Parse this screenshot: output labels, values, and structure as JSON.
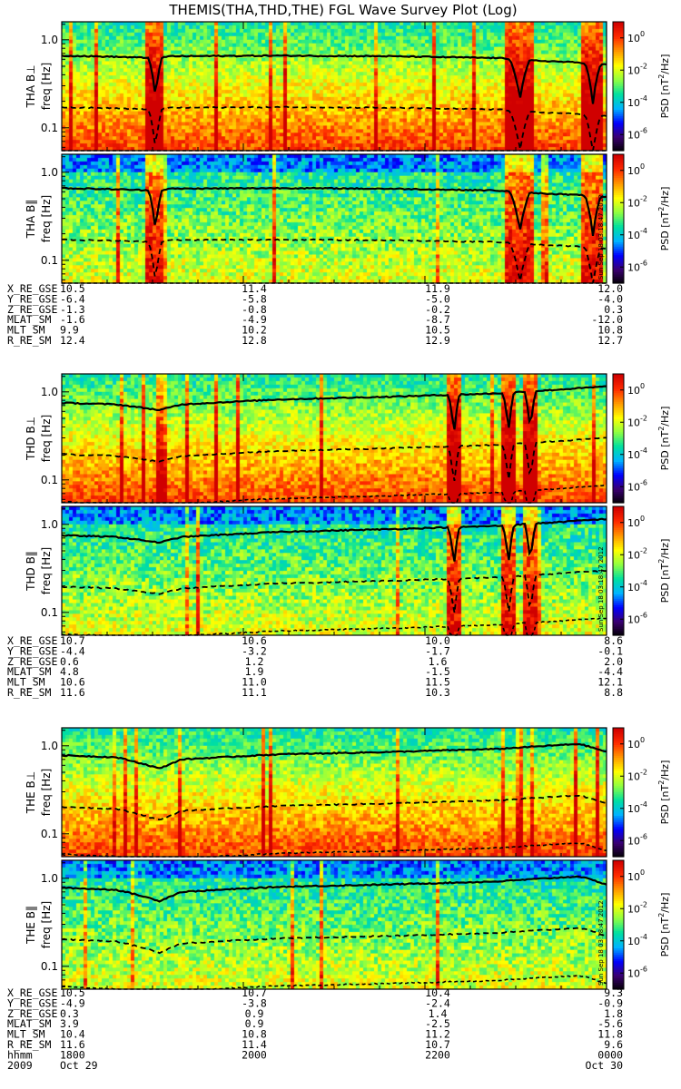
{
  "title": "THEMIS(THA,THD,THE) FGL Wave Survey Plot (Log)",
  "chart_data": {
    "type": "heatmap",
    "title": "THEMIS(THA,THD,THE) FGL Wave Survey Plot (Log)",
    "ylabel": "freq [Hz]",
    "yscale": "log",
    "ylim": [
      0.055,
      1.6
    ],
    "ytick_labels": [
      "1.0",
      "0.1"
    ],
    "yticks": [
      1.0,
      0.1
    ],
    "colorbar": {
      "label_prefix": "PSD [nT",
      "label_sup": "2",
      "label_suffix": "/Hz]",
      "scale": "log",
      "range": [
        1e-07,
        10
      ],
      "ticks": [
        {
          "base": "10",
          "exp": "0"
        },
        {
          "base": "10",
          "exp": "-2"
        },
        {
          "base": "10",
          "exp": "-4"
        },
        {
          "base": "10",
          "exp": "-6"
        }
      ],
      "colors": [
        "#000000",
        "#3b0070",
        "#0000ff",
        "#00b4ff",
        "#00e0a0",
        "#90ff40",
        "#ffff00",
        "#ff9900",
        "#ff2a00",
        "#d00000"
      ]
    },
    "stamp": "Sun Sep 18 03:18:47 2012",
    "probes": [
      {
        "name": "THA",
        "panels": [
          {
            "label": "THA B⊥",
            "spectral_level": "high",
            "gaps": [
              0.42,
              0.665
            ],
            "dips": [
              {
                "t": 0.172,
                "w": 0.012
              },
              {
                "t": 0.841,
                "w": 0.018
              },
              {
                "t": 0.975,
                "w": 0.014
              }
            ],
            "fce_line": [
              [
                0.0,
                0.66
              ],
              [
                0.1,
                0.64
              ],
              [
                0.17,
                0.62
              ],
              [
                0.2,
                0.65
              ],
              [
                0.4,
                0.66
              ],
              [
                0.6,
                0.65
              ],
              [
                0.8,
                0.62
              ],
              [
                0.83,
                0.6
              ],
              [
                0.87,
                0.58
              ],
              [
                0.95,
                0.55
              ],
              [
                1.0,
                0.52
              ]
            ]
          },
          {
            "label": "THA B‖",
            "spectral_level": "low",
            "gaps": [
              0.42,
              0.665
            ],
            "dips": [
              {
                "t": 0.172,
                "w": 0.012
              },
              {
                "t": 0.841,
                "w": 0.018
              },
              {
                "t": 0.975,
                "w": 0.014
              }
            ],
            "fce_line": [
              [
                0.0,
                0.66
              ],
              [
                0.1,
                0.64
              ],
              [
                0.17,
                0.62
              ],
              [
                0.2,
                0.65
              ],
              [
                0.4,
                0.66
              ],
              [
                0.6,
                0.65
              ],
              [
                0.8,
                0.62
              ],
              [
                0.83,
                0.6
              ],
              [
                0.87,
                0.58
              ],
              [
                0.95,
                0.55
              ],
              [
                1.0,
                0.52
              ]
            ]
          }
        ],
        "ephemeris_labels": [
          "X_RE_GSE",
          "Y_RE_GSE",
          "Z_RE_GSE",
          "MLAT_SM",
          "MLT_SM",
          "R_RE_SM"
        ],
        "ephemeris_columns": [
          [
            "10.5",
            "-6.4",
            "-1.3",
            "-1.6",
            "9.9",
            "12.4"
          ],
          [
            "11.4",
            "-5.8",
            "-0.8",
            "-4.9",
            "10.2",
            "12.8"
          ],
          [
            "11.9",
            "-5.0",
            "-0.2",
            "-8.7",
            "10.5",
            "12.9"
          ],
          [
            "12.0",
            "-4.0",
            "0.3",
            "-12.0",
            "10.8",
            "12.7"
          ]
        ]
      },
      {
        "name": "THD",
        "panels": [
          {
            "label": "THD B⊥",
            "spectral_level": "high",
            "gaps": [
              0.42,
              0.665
            ],
            "dips": [
              {
                "t": 0.72,
                "w": 0.01
              },
              {
                "t": 0.82,
                "w": 0.01
              },
              {
                "t": 0.86,
                "w": 0.01
              }
            ],
            "fce_line": [
              [
                0.0,
                0.75
              ],
              [
                0.1,
                0.72
              ],
              [
                0.18,
                0.62
              ],
              [
                0.22,
                0.72
              ],
              [
                0.4,
                0.82
              ],
              [
                0.6,
                0.88
              ],
              [
                0.8,
                0.96
              ],
              [
                0.9,
                1.05
              ],
              [
                1.0,
                1.15
              ]
            ]
          },
          {
            "label": "THD B‖",
            "spectral_level": "low",
            "gaps": [
              0.42,
              0.665
            ],
            "dips": [
              {
                "t": 0.72,
                "w": 0.01
              },
              {
                "t": 0.82,
                "w": 0.01
              },
              {
                "t": 0.86,
                "w": 0.01
              }
            ],
            "fce_line": [
              [
                0.0,
                0.75
              ],
              [
                0.1,
                0.72
              ],
              [
                0.18,
                0.62
              ],
              [
                0.22,
                0.72
              ],
              [
                0.4,
                0.82
              ],
              [
                0.6,
                0.88
              ],
              [
                0.8,
                0.96
              ],
              [
                0.9,
                1.05
              ],
              [
                1.0,
                1.15
              ]
            ]
          }
        ],
        "ephemeris_labels": [
          "X_RE_GSE",
          "Y_RE_GSE",
          "Z_RE_GSE",
          "MLAT_SM",
          "MLT_SM",
          "R_RE_SM"
        ],
        "ephemeris_columns": [
          [
            "10.7",
            "-4.4",
            "0.6",
            "4.8",
            "10.6",
            "11.6"
          ],
          [
            "10.6",
            "-3.2",
            "1.2",
            "1.9",
            "11.0",
            "11.1"
          ],
          [
            "10.0",
            "-1.7",
            "1.6",
            "-1.5",
            "11.5",
            "10.3"
          ],
          [
            "8.6",
            "-0.1",
            "2.0",
            "-4.4",
            "12.1",
            "8.8"
          ]
        ]
      },
      {
        "name": "THE",
        "panels": [
          {
            "label": "THE B⊥",
            "spectral_level": "high",
            "gaps": [],
            "dips": [],
            "fce_line": [
              [
                0.0,
                0.78
              ],
              [
                0.1,
                0.74
              ],
              [
                0.18,
                0.55
              ],
              [
                0.22,
                0.7
              ],
              [
                0.4,
                0.8
              ],
              [
                0.6,
                0.85
              ],
              [
                0.8,
                0.92
              ],
              [
                0.95,
                1.05
              ],
              [
                1.0,
                0.85
              ]
            ]
          },
          {
            "label": "THE B‖",
            "spectral_level": "low",
            "gaps": [],
            "dips": [],
            "fce_line": [
              [
                0.0,
                0.78
              ],
              [
                0.1,
                0.74
              ],
              [
                0.18,
                0.55
              ],
              [
                0.22,
                0.7
              ],
              [
                0.4,
                0.8
              ],
              [
                0.6,
                0.85
              ],
              [
                0.8,
                0.92
              ],
              [
                0.95,
                1.05
              ],
              [
                1.0,
                0.85
              ]
            ]
          }
        ],
        "ephemeris_labels": [
          "X_RE_GSE",
          "Y_RE_GSE",
          "Z_RE_GSE",
          "MLAT_SM",
          "MLT_SM",
          "R_RE_SM",
          "hhmm",
          "2009"
        ],
        "ephemeris_columns": [
          [
            "10.5",
            "-4.9",
            "0.3",
            "3.9",
            "10.4",
            "11.6",
            "1800",
            "Oct 29"
          ],
          [
            "10.7",
            "-3.8",
            "0.9",
            "0.9",
            "10.8",
            "11.4",
            "2000",
            ""
          ],
          [
            "10.4",
            "-2.4",
            "1.4",
            "-2.5",
            "11.2",
            "10.7",
            "2200",
            ""
          ],
          [
            "9.3",
            "-0.9",
            "1.8",
            "-5.6",
            "11.8",
            "9.6",
            "0000",
            "Oct 30"
          ]
        ]
      }
    ]
  }
}
